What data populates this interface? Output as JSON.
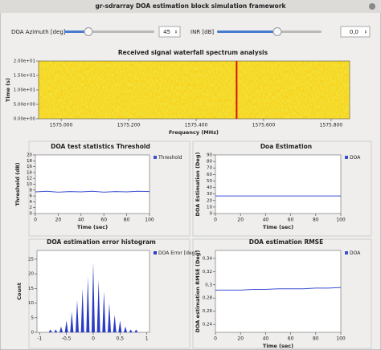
{
  "window": {
    "title": "gr-sdrarray DOA estimation block simulation framework"
  },
  "controls": [
    {
      "label": "DOA Azimuth [deg]",
      "value": 45
    },
    {
      "label": "INR [dB]",
      "value": 0,
      "value_label": "0,0"
    }
  ],
  "waterfall": {
    "title": "Received signal waterfall spectrum analysis",
    "xlabel": "Frequency (MHz)",
    "ylabel": "Time (s)",
    "xlim": [
      1574.933,
      1575.855
    ],
    "xticks": [
      {
        "value": 1575.0,
        "label": "1575.000"
      },
      {
        "value": 1575.2,
        "label": "1575.200"
      },
      {
        "value": 1575.4,
        "label": "1575.400"
      },
      {
        "value": 1575.6,
        "label": "1575.600"
      },
      {
        "value": 1575.8,
        "label": "1575.800"
      }
    ],
    "ylim": [
      0,
      20
    ],
    "yticks": [
      {
        "value": 20,
        "label": "2.00e+01"
      },
      {
        "value": 15,
        "label": "1.50e+01"
      },
      {
        "value": 10,
        "label": "1.00e+01"
      },
      {
        "value": 5,
        "label": "5.00e+00"
      },
      {
        "value": 0,
        "label": "0.00e+00"
      }
    ],
    "signal_x": 1575.52,
    "signal_color": "#d81010"
  },
  "plots": [
    {
      "type": "line",
      "title": "DOA test statistics Threshold",
      "xlabel": "Time (sec)",
      "ylabel": "Threshold (dB)",
      "legend": "Threshold",
      "color": "#3b4fd0",
      "xlim": [
        0,
        100
      ],
      "xticks": [
        0,
        20,
        40,
        60,
        80,
        100
      ],
      "ylim": [
        0,
        20
      ],
      "yticks": [
        0,
        2,
        4,
        6,
        8,
        10,
        12,
        14,
        16,
        18,
        20
      ],
      "x": [
        0,
        10,
        20,
        30,
        40,
        50,
        60,
        70,
        80,
        90,
        100
      ],
      "values": [
        7.4,
        7.6,
        7.3,
        7.5,
        7.4,
        7.6,
        7.3,
        7.5,
        7.4,
        7.6,
        7.5
      ]
    },
    {
      "type": "line",
      "title": "Doa Estimation",
      "xlabel": "Time (sec)",
      "ylabel": "DOA Estimation (Deg)",
      "legend": "DOA",
      "color": "#3b4fd0",
      "xlim": [
        0,
        100
      ],
      "xticks": [
        0,
        20,
        40,
        60,
        80,
        100
      ],
      "ylim": [
        0,
        90
      ],
      "yticks": [
        0,
        10,
        20,
        30,
        40,
        50,
        60,
        70,
        80,
        90
      ],
      "x": [
        0,
        10,
        20,
        30,
        40,
        50,
        60,
        70,
        80,
        90,
        100
      ],
      "values": [
        27,
        27,
        27,
        27,
        27,
        27,
        27,
        27,
        27,
        27,
        27
      ]
    },
    {
      "type": "stem",
      "title": "DOA estimation error histogram",
      "xlabel": null,
      "ylabel": "Count",
      "legend": "DOA Error [deg]",
      "color": "#2a3bc4",
      "xlim": [
        -1.05,
        1.05
      ],
      "xticks": [
        -1,
        {
          "value": -0.5,
          "label": "-0,5"
        },
        0,
        {
          "value": 0.5,
          "label": "0,5"
        },
        1
      ],
      "ylim": [
        0,
        28
      ],
      "yticks": [
        0,
        5,
        10,
        15,
        20,
        25
      ],
      "x": [
        -0.8,
        -0.7,
        -0.6,
        -0.5,
        -0.4,
        -0.3,
        -0.2,
        -0.1,
        0,
        0.1,
        0.2,
        0.3,
        0.4,
        0.5,
        0.6,
        0.7,
        0.8
      ],
      "values": [
        1,
        1,
        2,
        4,
        7,
        11,
        15,
        19,
        24,
        18,
        14,
        10,
        6,
        4,
        2,
        1,
        1
      ]
    },
    {
      "type": "line",
      "title": "DOA estimation RMSE",
      "xlabel": "Time (sec)",
      "ylabel": "DOA estimation RMSE (Deg)",
      "legend": "DOA",
      "color": "#3b4fd0",
      "xlim": [
        0,
        100
      ],
      "xticks": [
        0,
        20,
        40,
        60,
        80,
        100
      ],
      "ylim": [
        0.228,
        0.352
      ],
      "yticks": [
        {
          "value": 0.24,
          "label": "0,24"
        },
        {
          "value": 0.26,
          "label": "0,26"
        },
        {
          "value": 0.28,
          "label": "0,28"
        },
        {
          "value": 0.3,
          "label": "0,3"
        },
        {
          "value": 0.32,
          "label": "0,32"
        },
        {
          "value": 0.34,
          "label": "0,34"
        }
      ],
      "x": [
        0,
        10,
        20,
        30,
        40,
        50,
        60,
        70,
        80,
        90,
        100
      ],
      "values": [
        0.292,
        0.292,
        0.292,
        0.293,
        0.293,
        0.294,
        0.294,
        0.294,
        0.295,
        0.295,
        0.296
      ]
    }
  ]
}
